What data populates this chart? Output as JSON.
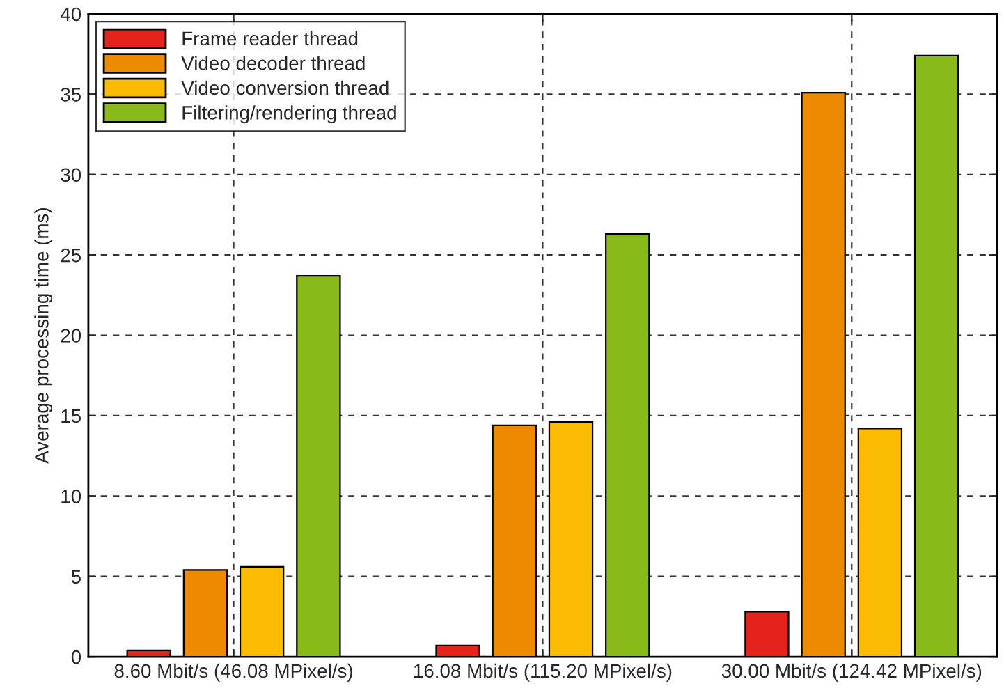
{
  "chart_data": {
    "type": "bar",
    "ylabel": "Average processing time (ms)",
    "categories": [
      "8.60 Mbit/s (46.08 MPixel/s)",
      "16.08 Mbit/s (115.20 MPixel/s)",
      "30.00 Mbit/s (124.42 MPixel/s)"
    ],
    "series": [
      {
        "name": "Frame reader thread",
        "color": "#e3231c",
        "values": [
          0.4,
          0.7,
          2.8
        ]
      },
      {
        "name": "Video decoder thread",
        "color": "#ee8a00",
        "values": [
          5.4,
          14.4,
          35.1
        ]
      },
      {
        "name": "Video conversion thread",
        "color": "#fbbb00",
        "values": [
          5.6,
          14.6,
          14.2
        ]
      },
      {
        "name": "Filtering/rendering thread",
        "color": "#88ba19",
        "values": [
          23.7,
          26.3,
          37.4
        ]
      }
    ],
    "ylim": [
      0,
      40
    ],
    "yticks": [
      0,
      5,
      10,
      15,
      20,
      25,
      30,
      35,
      40
    ],
    "grid": true,
    "legend": "top left"
  }
}
